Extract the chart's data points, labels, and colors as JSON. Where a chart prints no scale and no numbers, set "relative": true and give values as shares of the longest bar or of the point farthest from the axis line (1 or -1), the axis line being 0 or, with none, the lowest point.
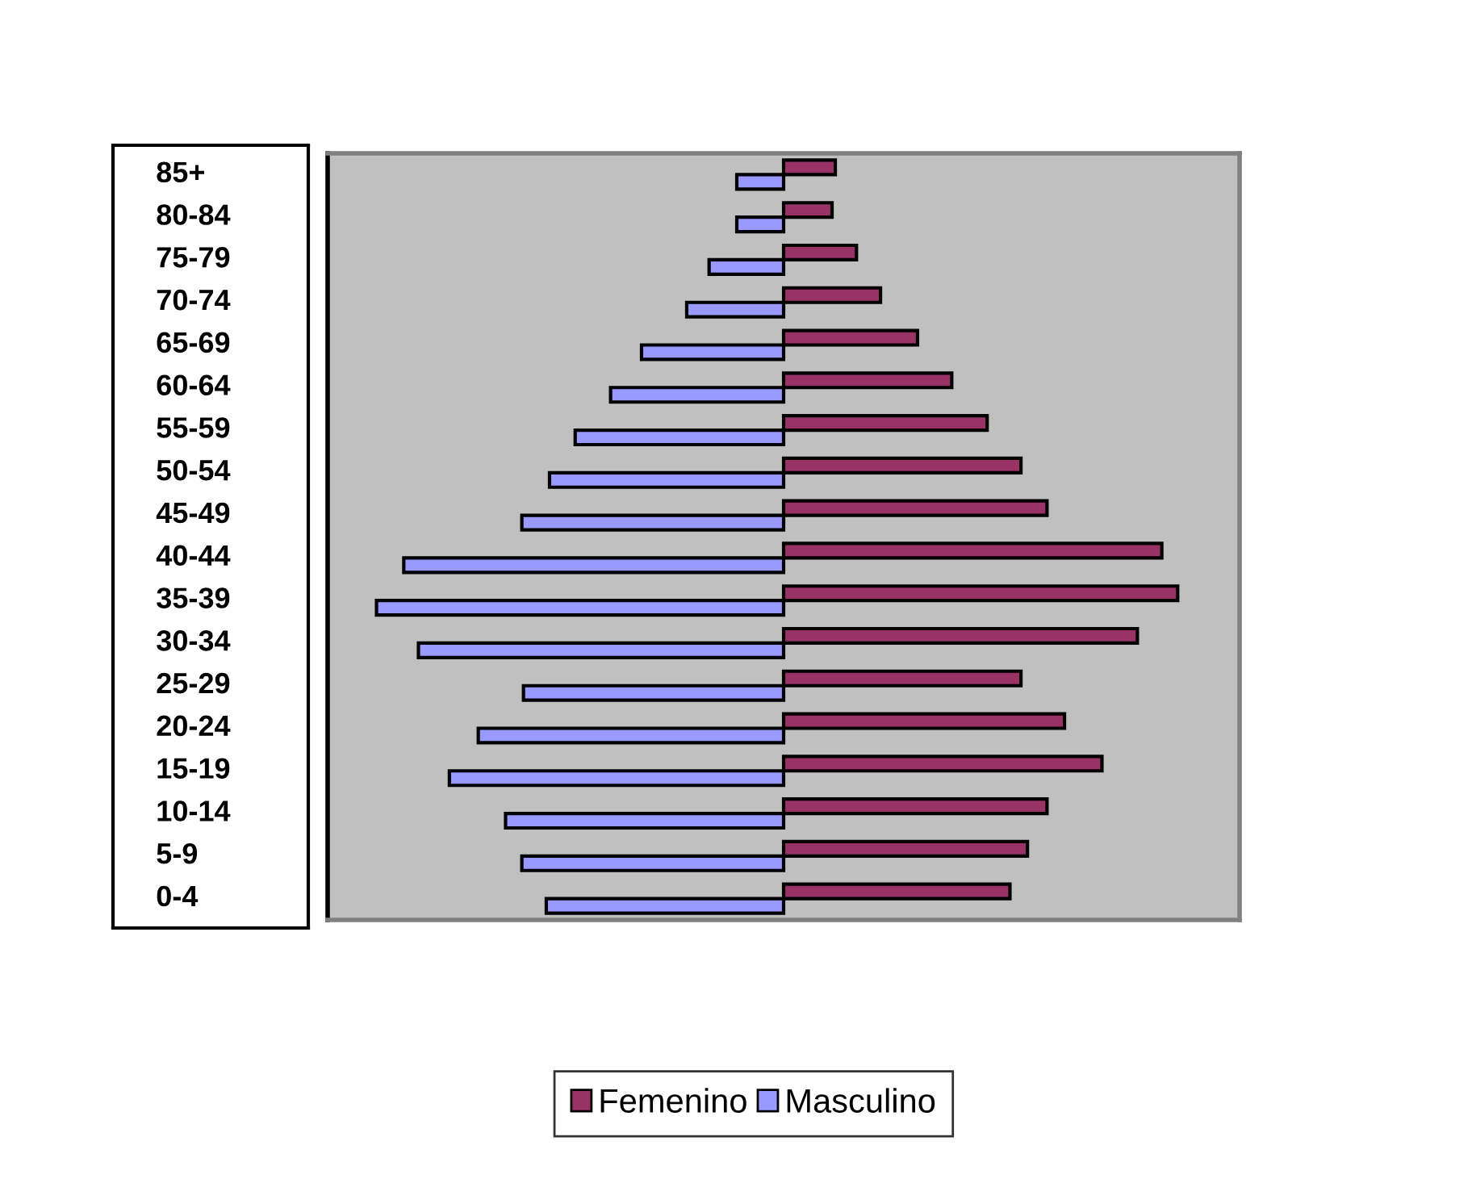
{
  "chart_data": {
    "type": "bar",
    "orientation": "horizontal",
    "relative": true,
    "categories": [
      "85+",
      "80-84",
      "75-79",
      "70-74",
      "65-69",
      "60-64",
      "55-59",
      "50-54",
      "45-49",
      "40-44",
      "35-39",
      "30-34",
      "25-29",
      "20-24",
      "15-19",
      "10-14",
      "5-9",
      "0-4"
    ],
    "series": [
      {
        "name": "Femenino",
        "color": "#993366",
        "values": [
          0.127,
          0.119,
          0.179,
          0.238,
          0.329,
          0.413,
          0.5,
          0.583,
          0.647,
          0.929,
          0.968,
          0.869,
          0.583,
          0.69,
          0.782,
          0.647,
          0.599,
          0.556
        ]
      },
      {
        "name": "Masculino",
        "color": "#9999ff",
        "values": [
          -0.115,
          -0.115,
          -0.183,
          -0.238,
          -0.349,
          -0.425,
          -0.512,
          -0.575,
          -0.643,
          -0.933,
          -1,
          -0.897,
          -0.639,
          -0.75,
          -0.821,
          -0.683,
          -0.643,
          -0.583
        ]
      }
    ],
    "legend": "bottom",
    "grid": false
  }
}
